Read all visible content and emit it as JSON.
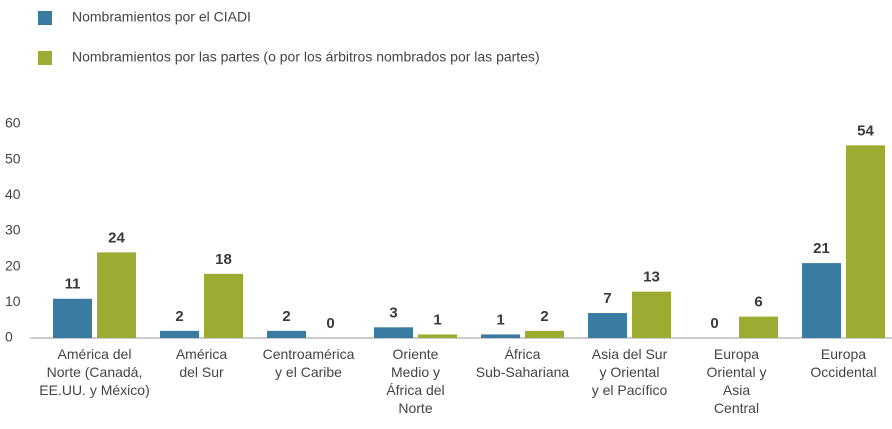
{
  "chart_data": {
    "type": "bar",
    "categories": [
      "América del\nNorte (Canadá,\nEE.UU. y México)",
      "América\ndel Sur",
      "Centroamérica\ny el Caribe",
      "Oriente\nMedio y\nÁfrica del\nNorte",
      "África\nSub-Sahariana",
      "Asia del Sur\ny Oriental\ny el Pacífico",
      "Europa\nOriental y\nAsia\nCentral",
      "Europa\nOccidental"
    ],
    "series": [
      {
        "name": "Nombramientos por el CIADI",
        "color": "#3a7ca1",
        "values": [
          11,
          2,
          2,
          3,
          1,
          7,
          0,
          21
        ]
      },
      {
        "name": "Nombramientos por las partes (o por los árbitros nombrados por las partes)",
        "color": "#9cab32",
        "values": [
          24,
          18,
          0,
          1,
          2,
          13,
          6,
          54
        ]
      }
    ],
    "ylim": [
      0,
      60
    ],
    "yticks": [
      0,
      10,
      20,
      30,
      40,
      50,
      60
    ],
    "grid": false,
    "legend": "top-left"
  }
}
